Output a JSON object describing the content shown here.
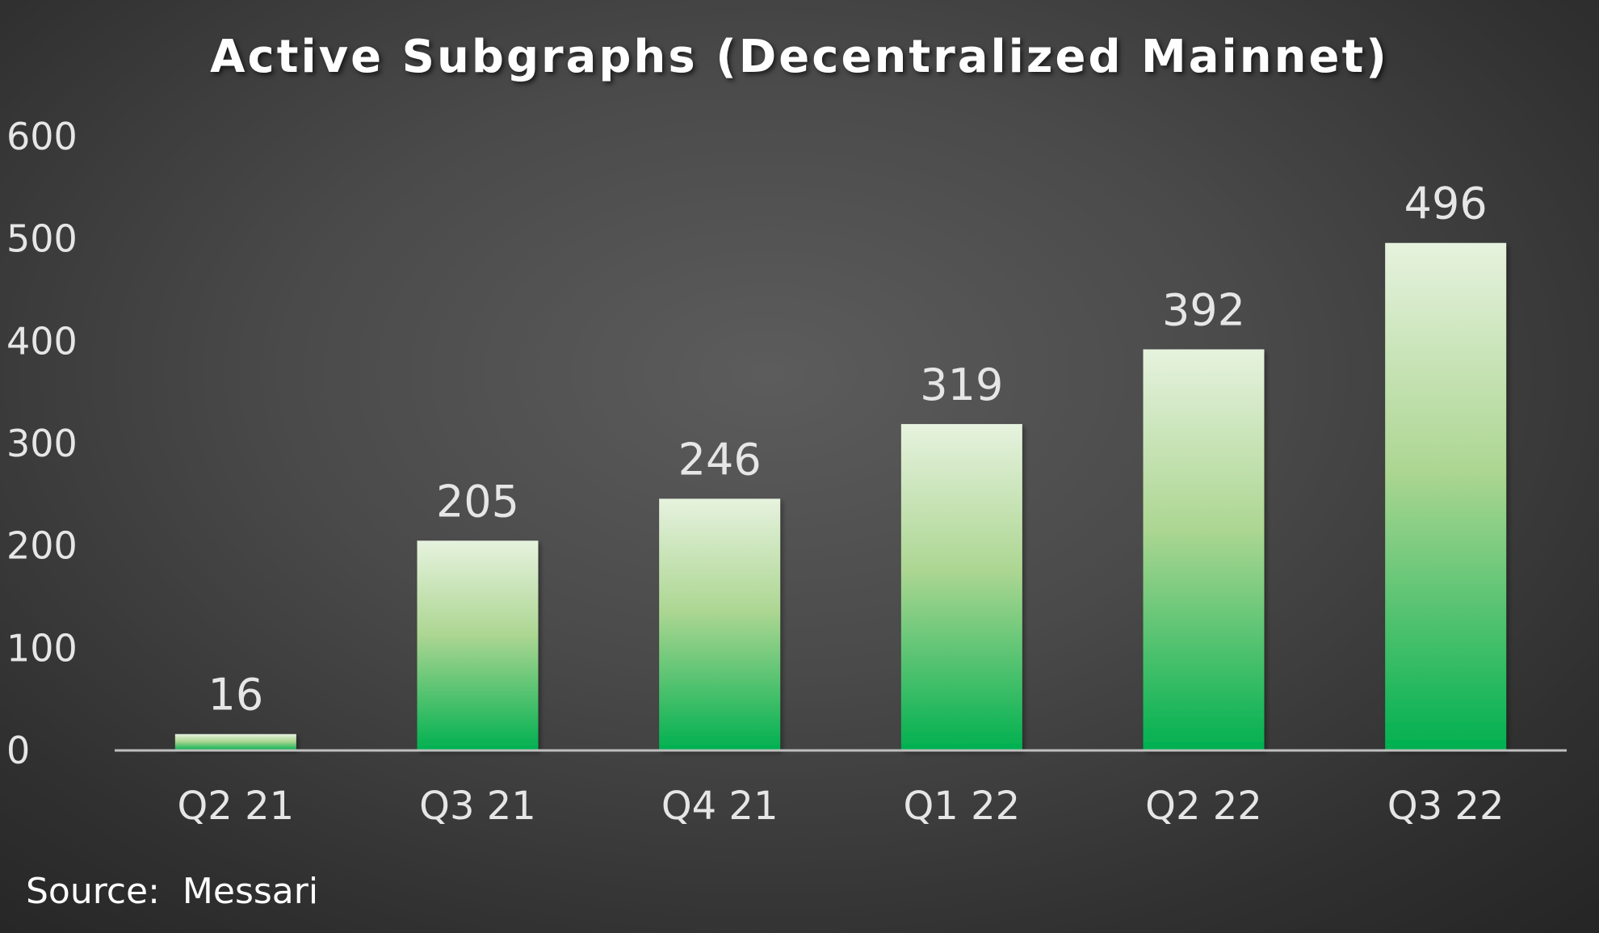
{
  "chart_data": {
    "type": "bar",
    "title": "Active Subgraphs (Decentralized Mainnet)",
    "categories": [
      "Q2 21",
      "Q3 21",
      "Q4 21",
      "Q1 22",
      "Q2 22",
      "Q3 22"
    ],
    "values": [
      16,
      205,
      246,
      319,
      392,
      496
    ],
    "data_labels": [
      "16",
      "205",
      "246",
      "319",
      "392",
      "496"
    ],
    "ylim": [
      0,
      600
    ],
    "yticks": [
      0,
      100,
      200,
      300,
      400,
      500,
      600
    ],
    "ytick_labels": [
      "0",
      "100",
      "200",
      "300",
      "400",
      "500",
      "600"
    ],
    "xlabel": "",
    "ylabel": "",
    "grid": false,
    "legend": "none",
    "colors": {
      "bar_top": "#e6f2de",
      "bar_mid": "#acd692",
      "bar_bottom": "#00b050",
      "axis": "#bfbfbf",
      "text": "#e6e6e6"
    }
  },
  "source": "Source:  Messari"
}
